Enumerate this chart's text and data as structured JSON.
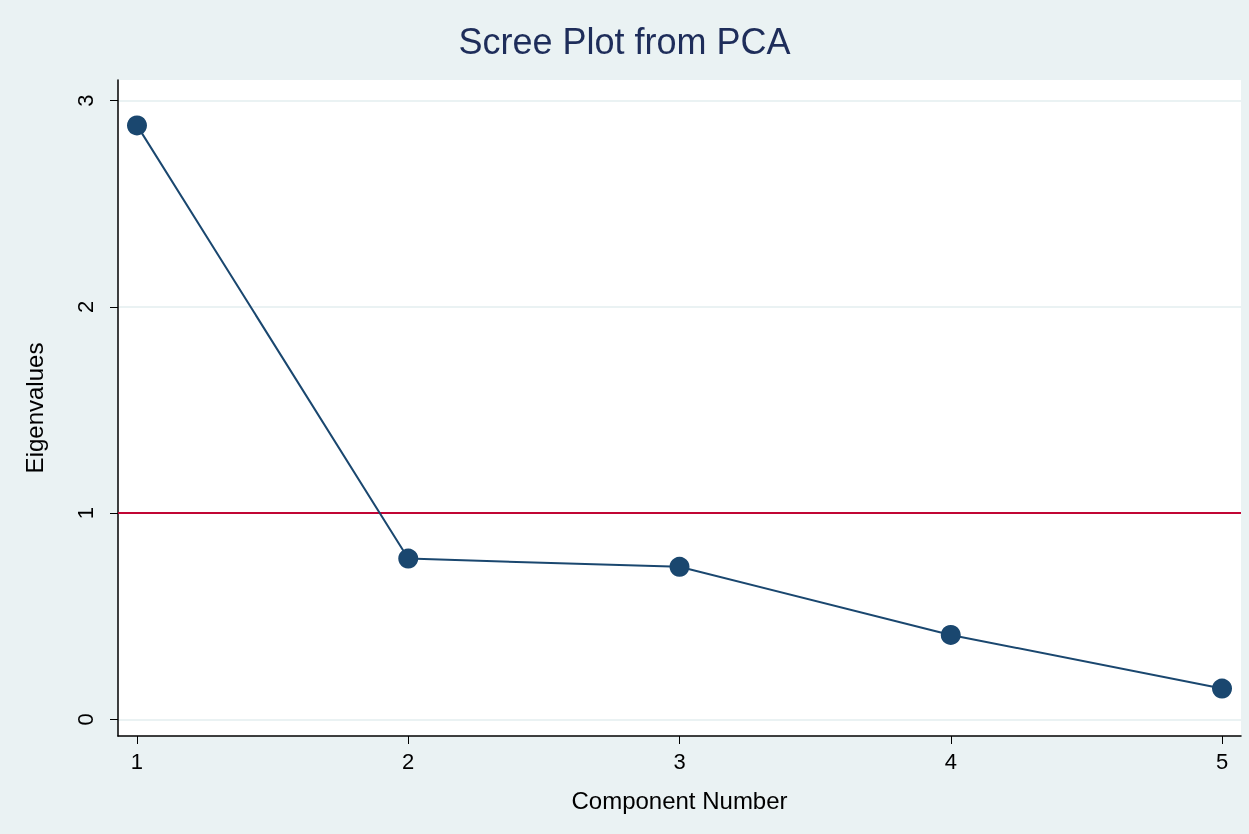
{
  "chart_data": {
    "type": "line",
    "title": "Scree Plot from PCA",
    "xlabel": "Component Number",
    "ylabel": "Eigenvalues",
    "x": [
      1,
      2,
      3,
      4,
      5
    ],
    "series": [
      {
        "color": "#1a476f",
        "values": [
          2.88,
          0.78,
          0.74,
          0.41,
          0.15
        ]
      }
    ],
    "xlim": [
      0.93,
      5.07
    ],
    "xticks": [
      1,
      2,
      3,
      4,
      5
    ],
    "ylim": [
      -0.08,
      3.1
    ],
    "yticks": [
      0,
      1,
      2,
      3
    ],
    "ref_lines": [
      {
        "axis": "y",
        "value": 1,
        "color": "#c10534"
      }
    ],
    "grid": "y",
    "marker": "circle",
    "line_style": "solid"
  }
}
